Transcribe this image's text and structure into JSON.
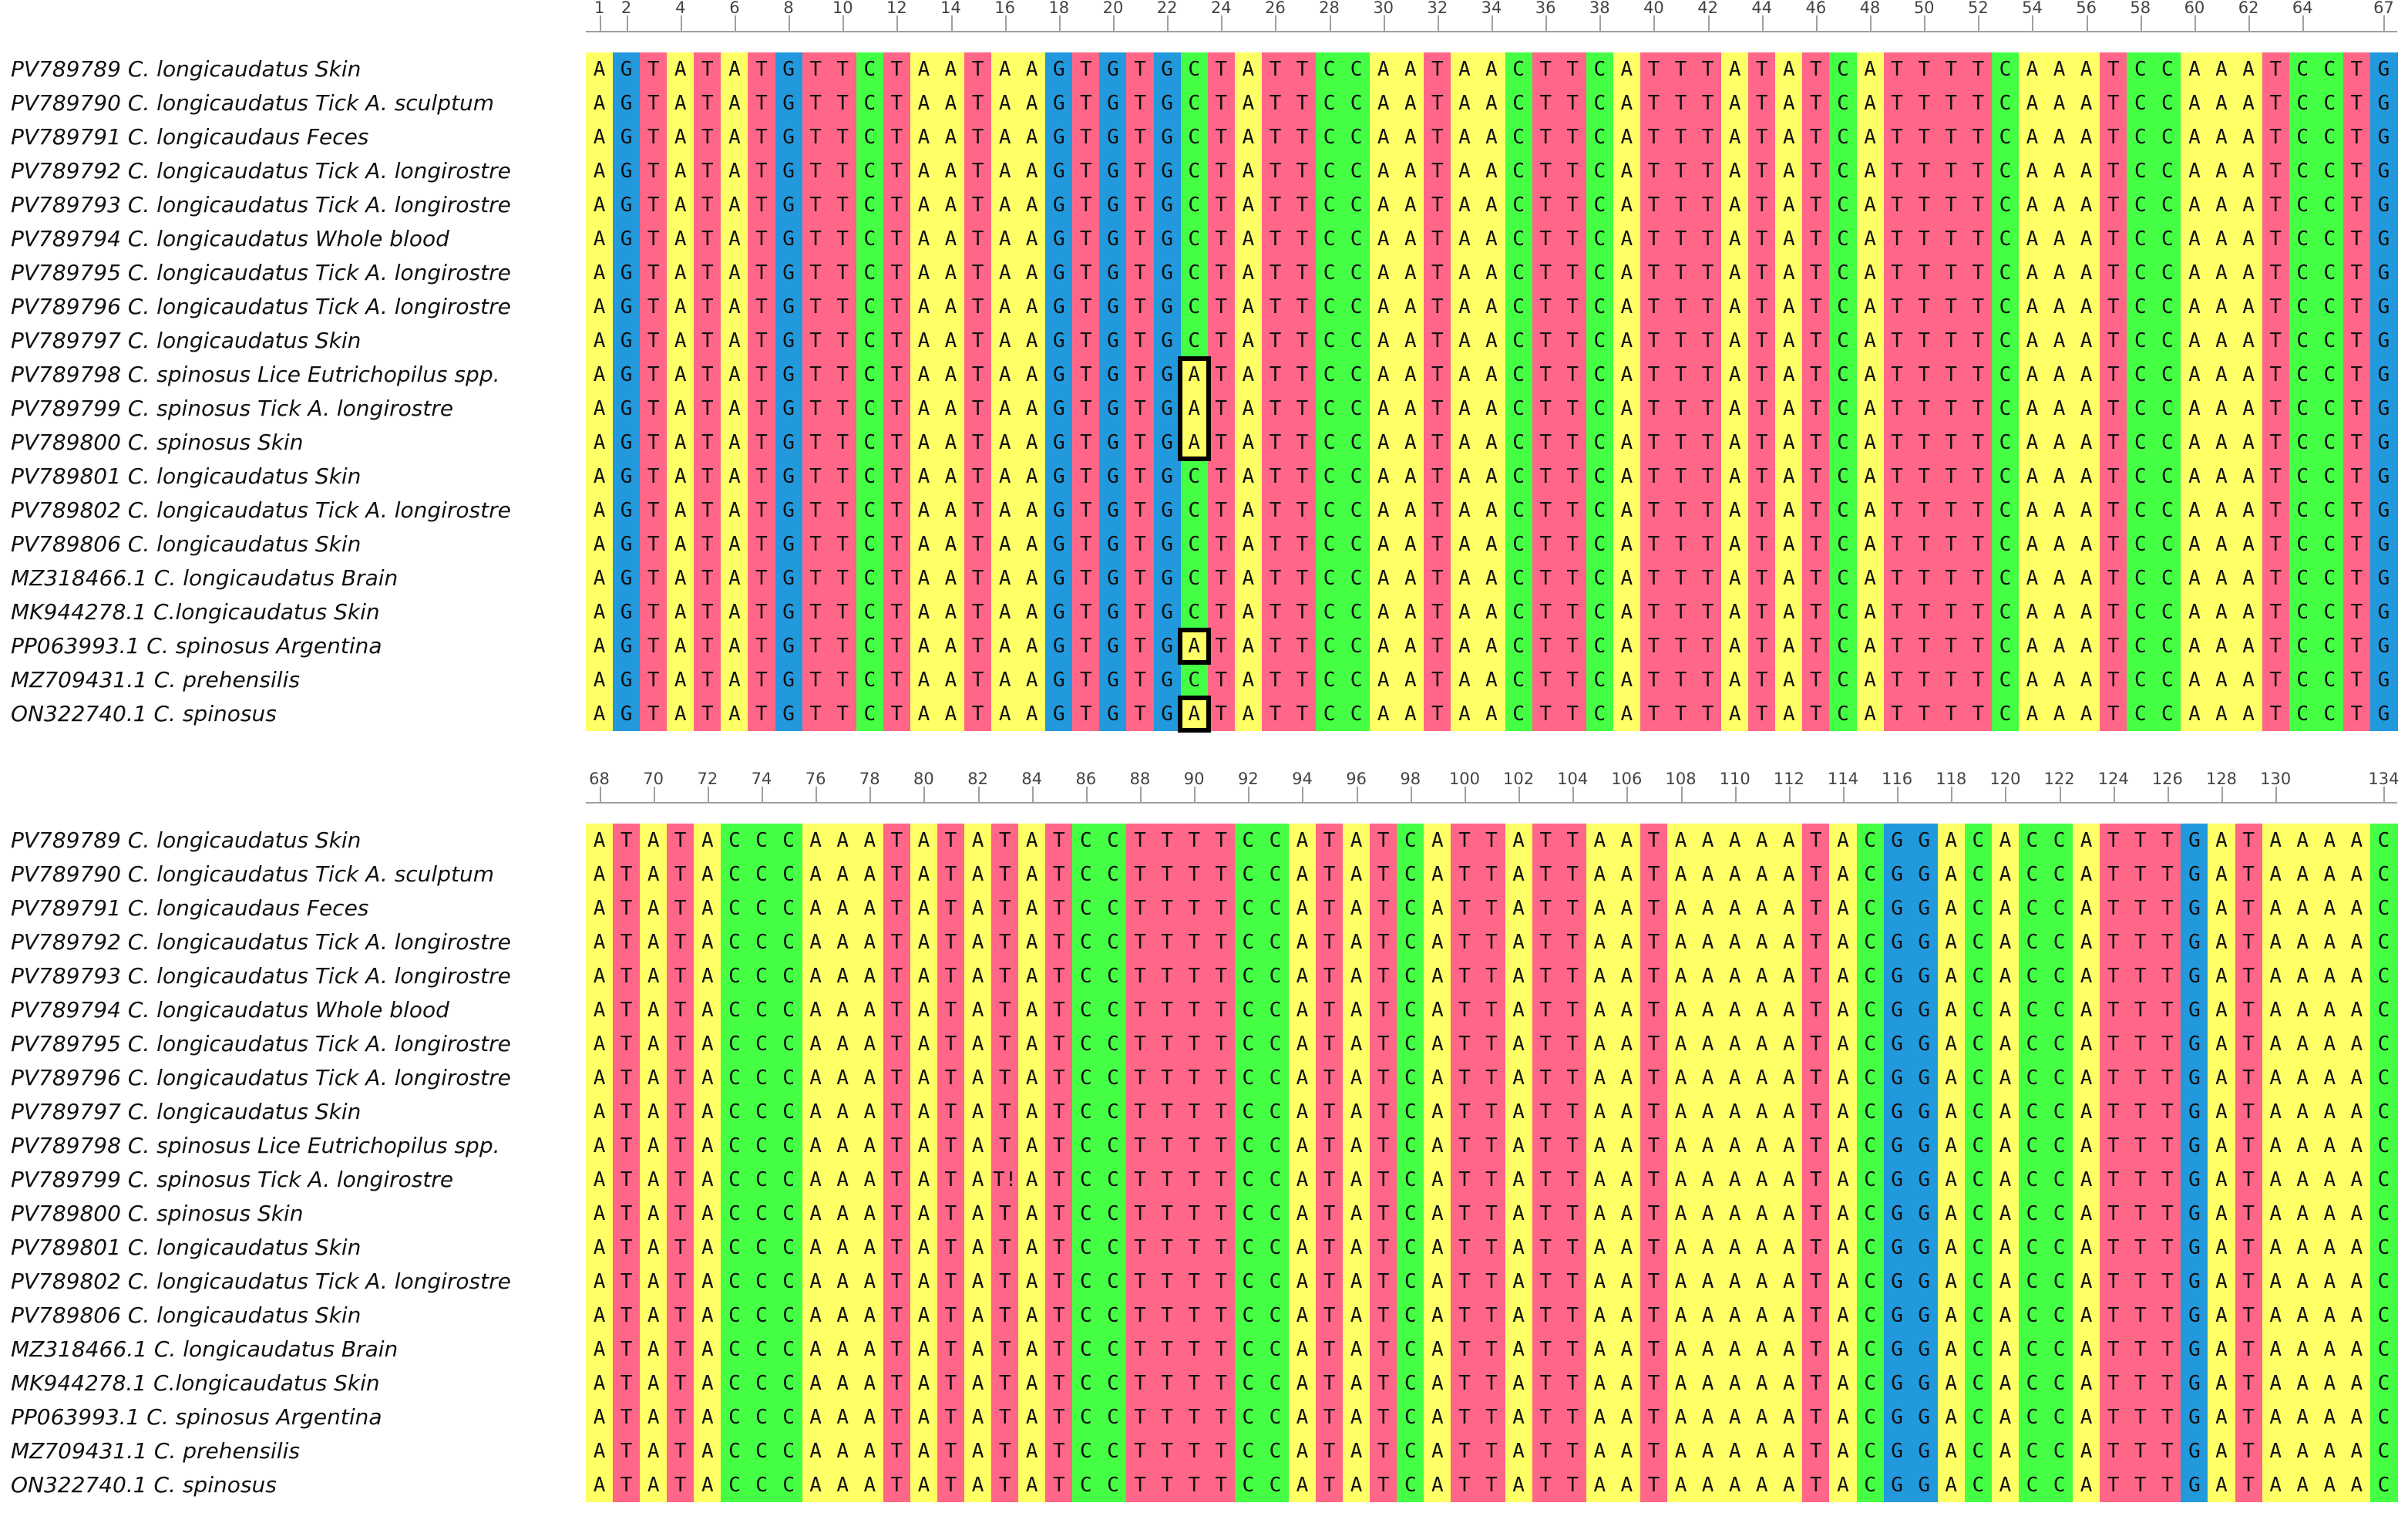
{
  "colors": {
    "A": "#ffff66",
    "C": "#44ff44",
    "G": "#2299dd",
    "T": "#ff6688"
  },
  "sequences": [
    "PV789789 C. longicaudatus Skin",
    "PV789790 C. longicaudatus Tick A. sculptum",
    "PV789791 C. longicaudaus Feces",
    "PV789792 C. longicaudatus Tick A. longirostre",
    "PV789793 C. longicaudatus Tick A. longirostre",
    "PV789794 C. longicaudatus Whole blood",
    "PV789795 C. longicaudatus Tick A. longirostre",
    "PV789796 C. longicaudatus Tick A. longirostre",
    "PV789797 C. longicaudatus Skin",
    "PV789798 C. spinosus Lice Eutrichopilus spp.",
    "PV789799 C. spinosus Tick A. longirostre",
    "PV789800 C. spinosus Skin",
    "PV789801 C. longicaudatus Skin",
    "PV789802 C. longicaudatus Tick A. longirostre",
    "PV789806 C. longicaudatus Skin",
    "MZ318466.1 C. longicaudatus Brain",
    "MK944278.1 C.longicaudatus Skin",
    "PP063993.1 C. spinosus Argentina",
    "MZ709431.1 C. prehensilis",
    "ON322740.1 C. spinosus"
  ],
  "blocks": [
    {
      "start": 1,
      "consensus": "AGTATATGTTCTAATAAGTGTGCTATTCCAATAACTTCATTTATATCATTTTCAAATCCAAATCCTG",
      "ticks": [
        "1",
        "2",
        "4",
        "6",
        "8",
        "10",
        "12",
        "14",
        "16",
        "18",
        "20",
        "22",
        "24",
        "26",
        "28",
        "30",
        "32",
        "34",
        "36",
        "38",
        "40",
        "42",
        "44",
        "46",
        "48",
        "50",
        "52",
        "54",
        "56",
        "58",
        "60",
        "62",
        "64",
        "67"
      ],
      "variants": [
        {
          "row": 9,
          "col": 23,
          "base": "A"
        },
        {
          "row": 10,
          "col": 23,
          "base": "A"
        },
        {
          "row": 11,
          "col": 23,
          "base": "A"
        },
        {
          "row": 17,
          "col": 23,
          "base": "A"
        },
        {
          "row": 19,
          "col": 23,
          "base": "A"
        }
      ],
      "highlights": [
        {
          "col": 23,
          "rows": [
            9,
            11
          ]
        },
        {
          "col": 23,
          "rows": [
            17,
            17
          ]
        },
        {
          "col": 23,
          "rows": [
            19,
            19
          ]
        }
      ]
    },
    {
      "start": 68,
      "consensus": "ATATACCCAAATATATATCCTTTTCCATATCATTATTAATAAAAATACGGACACCATTTGATAAAAC",
      "ticks": [
        "68",
        "70",
        "72",
        "74",
        "76",
        "78",
        "80",
        "82",
        "84",
        "86",
        "88",
        "90",
        "92",
        "94",
        "96",
        "98",
        "100",
        "102",
        "104",
        "106",
        "108",
        "110",
        "112",
        "114",
        "116",
        "118",
        "120",
        "122",
        "124",
        "126",
        "128",
        "130",
        "134"
      ],
      "variants": [
        {
          "row": 10,
          "col": 83,
          "base": "T!"
        }
      ],
      "highlights": []
    }
  ]
}
